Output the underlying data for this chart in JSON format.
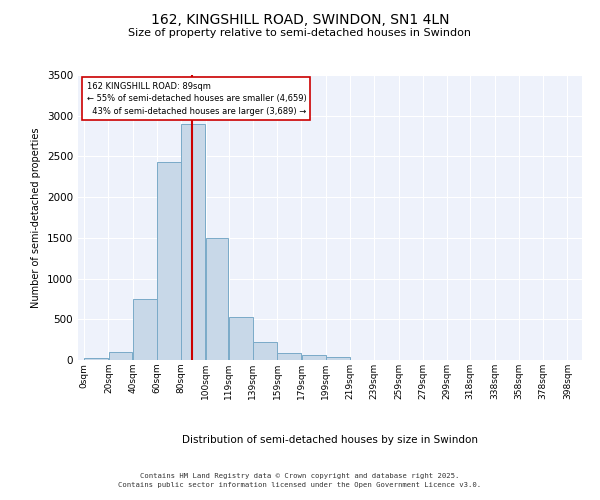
{
  "title_line1": "162, KINGSHILL ROAD, SWINDON, SN1 4LN",
  "title_line2": "Size of property relative to semi-detached houses in Swindon",
  "xlabel": "Distribution of semi-detached houses by size in Swindon",
  "ylabel": "Number of semi-detached properties",
  "property_label": "162 KINGSHILL ROAD: 89sqm",
  "pct_smaller": 55,
  "count_smaller": 4659,
  "pct_larger": 43,
  "count_larger": 3689,
  "bin_labels": [
    "0sqm",
    "20sqm",
    "40sqm",
    "60sqm",
    "80sqm",
    "100sqm",
    "119sqm",
    "139sqm",
    "159sqm",
    "179sqm",
    "199sqm",
    "219sqm",
    "239sqm",
    "259sqm",
    "279sqm",
    "299sqm",
    "318sqm",
    "338sqm",
    "358sqm",
    "378sqm",
    "398sqm"
  ],
  "bin_edges": [
    0,
    20,
    40,
    60,
    80,
    100,
    119,
    139,
    159,
    179,
    199,
    219,
    239,
    259,
    279,
    299,
    318,
    338,
    358,
    378,
    398
  ],
  "bar_values": [
    30,
    100,
    750,
    2430,
    2900,
    1500,
    530,
    220,
    90,
    60,
    35,
    5,
    0,
    0,
    0,
    0,
    0,
    0,
    0,
    0
  ],
  "bar_color": "#c8d8e8",
  "bar_edge_color": "#7aaac8",
  "vline_color": "#cc0000",
  "vline_x": 89,
  "annotation_box_color": "#cc0000",
  "background_color": "#eef2fb",
  "ylim": [
    0,
    3500
  ],
  "yticks": [
    0,
    500,
    1000,
    1500,
    2000,
    2500,
    3000,
    3500
  ],
  "footer_line1": "Contains HM Land Registry data © Crown copyright and database right 2025.",
  "footer_line2": "Contains public sector information licensed under the Open Government Licence v3.0."
}
